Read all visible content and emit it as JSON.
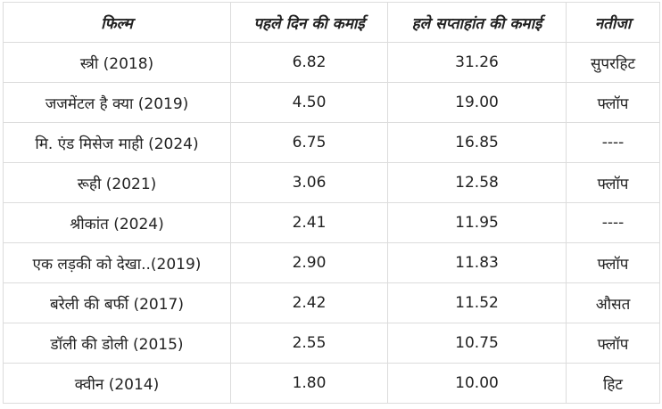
{
  "table": {
    "headers": {
      "film": "फिल्म",
      "first_day": "पहले दिन की कमाई",
      "first_weekend": "हले सप्ताहांत की कमाई",
      "result": "नतीजा"
    },
    "rows": [
      {
        "film": "स्त्री (2018)",
        "first_day": "6.82",
        "first_weekend": "31.26",
        "result": "सुपरहिट"
      },
      {
        "film": "जजमेंटल है क्या (2019)",
        "first_day": "4.50",
        "first_weekend": "19.00",
        "result": "फ्लॉप"
      },
      {
        "film": "मि. एंड मिसेज माही (2024)",
        "first_day": "6.75",
        "first_weekend": "16.85",
        "result": "----"
      },
      {
        "film": "रूही (2021)",
        "first_day": "3.06",
        "first_weekend": "12.58",
        "result": "फ्लॉप"
      },
      {
        "film": "श्रीकांत (2024)",
        "first_day": "2.41",
        "first_weekend": "11.95",
        "result": "----"
      },
      {
        "film": "एक लड़की को देखा..(2019)",
        "first_day": "2.90",
        "first_weekend": "11.83",
        "result": "फ्लॉप"
      },
      {
        "film": "बरेली की बर्फी (2017)",
        "first_day": "2.42",
        "first_weekend": "11.52",
        "result": "औसत"
      },
      {
        "film": "डॉली की डोली (2015)",
        "first_day": "2.55",
        "first_weekend": "10.75",
        "result": "फ्लॉप"
      },
      {
        "film": "क्वीन (2014)",
        "first_day": "1.80",
        "first_weekend": "10.00",
        "result": "हिट"
      }
    ]
  }
}
